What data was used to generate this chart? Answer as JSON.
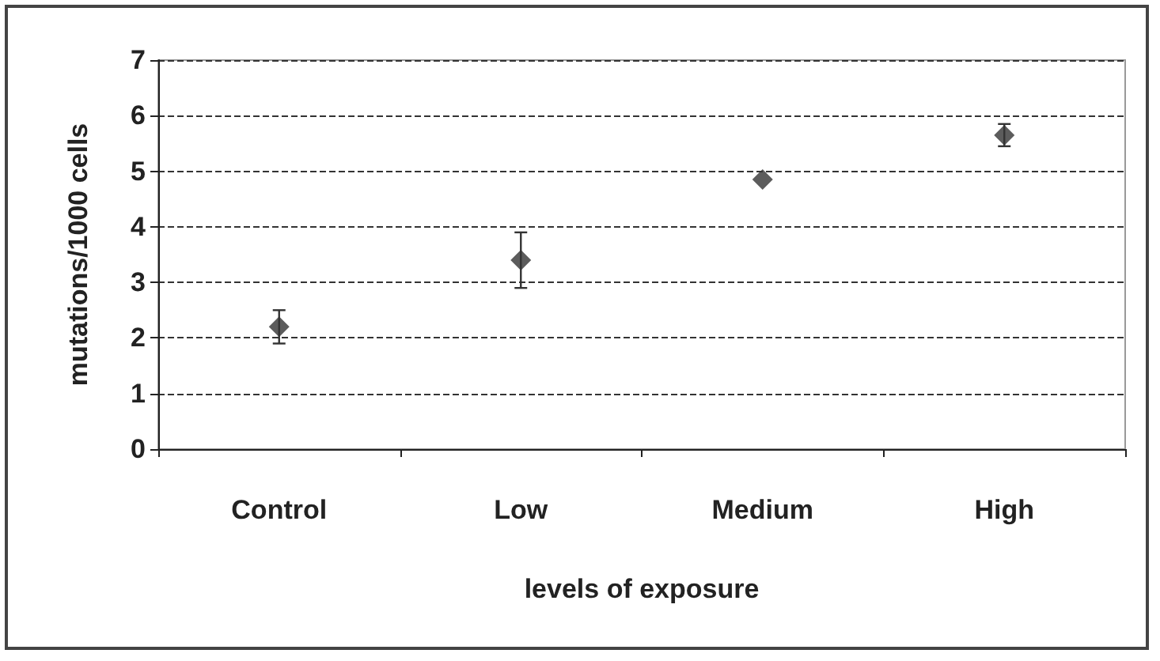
{
  "chart_data": {
    "type": "scatter",
    "xlabel": "levels of exposure",
    "ylabel": "mutations/1000 cells",
    "categories": [
      "Control",
      "Low",
      "Medium",
      "High"
    ],
    "values": [
      2.2,
      3.4,
      4.85,
      5.65
    ],
    "errors": [
      0.3,
      0.5,
      null,
      0.2
    ],
    "color": "#333333",
    "marker": "diamond",
    "ylim": [
      0,
      7
    ],
    "yticks": [
      0,
      1,
      2,
      3,
      4,
      5,
      6,
      7
    ],
    "grid": "y"
  }
}
